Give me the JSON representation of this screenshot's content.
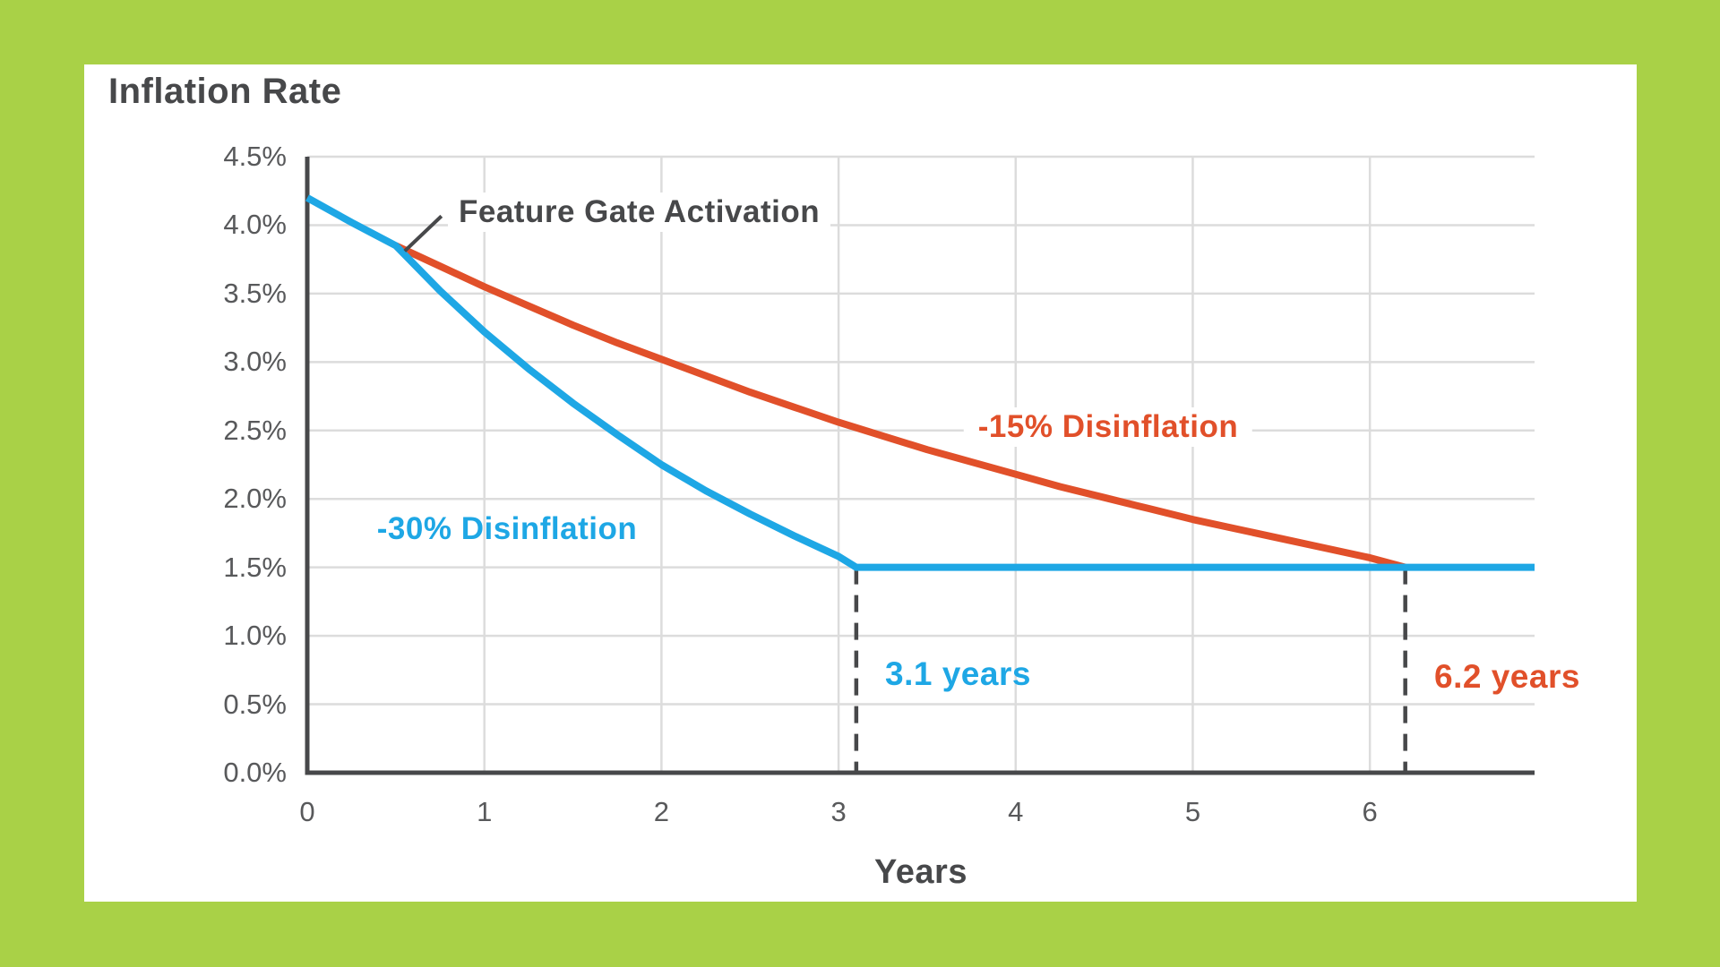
{
  "page": {
    "background_color": "#A9D147",
    "card_color": "#FFFFFF"
  },
  "chart": {
    "title": "Inflation Rate",
    "x_axis_label": "Years",
    "annotation_label": "Feature Gate Activation",
    "series_label_blue": "-30% Disinflation",
    "series_label_red": "-15% Disinflation",
    "marker_label_blue": "3.1 years",
    "marker_label_red": "6.2 years"
  },
  "chart_data": {
    "type": "line",
    "title": "Inflation Rate",
    "xlabel": "Years",
    "ylabel": "Inflation Rate",
    "xlim": [
      0,
      6.93
    ],
    "ylim": [
      0,
      4.5
    ],
    "grid": true,
    "x_ticks": [
      0,
      1,
      2,
      3,
      4,
      5,
      6
    ],
    "x_tick_labels": [
      "0",
      "1",
      "2",
      "3",
      "4",
      "5",
      "6"
    ],
    "y_ticks": [
      4.5,
      4.0,
      3.5,
      3.0,
      2.5,
      2.0,
      1.5,
      1.0,
      0.5,
      0.0
    ],
    "y_tick_labels": [
      "4.5%",
      "4.0%",
      "3.5%",
      "3.0%",
      "2.5%",
      "2.0%",
      "1.5%",
      "1.0%",
      "0.5%",
      "0.0%"
    ],
    "terminal_rate": 1.5,
    "colors": {
      "blue": "#1EA7E5",
      "red": "#E1502A",
      "axis": "#47484A",
      "grid": "#DCDCDC",
      "dashed": "#47484A"
    },
    "series": [
      {
        "name": "-15% Disinflation",
        "color": "#E1502A",
        "points": [
          [
            0.5,
            3.85
          ],
          [
            0.75,
            3.7
          ],
          [
            1.0,
            3.55
          ],
          [
            1.25,
            3.41
          ],
          [
            1.5,
            3.27
          ],
          [
            1.75,
            3.14
          ],
          [
            2.0,
            3.02
          ],
          [
            2.25,
            2.9
          ],
          [
            2.5,
            2.78
          ],
          [
            2.75,
            2.67
          ],
          [
            3.0,
            2.56
          ],
          [
            3.25,
            2.46
          ],
          [
            3.5,
            2.36
          ],
          [
            3.75,
            2.27
          ],
          [
            4.0,
            2.18
          ],
          [
            4.25,
            2.09
          ],
          [
            4.5,
            2.01
          ],
          [
            4.75,
            1.93
          ],
          [
            5.0,
            1.85
          ],
          [
            5.25,
            1.78
          ],
          [
            5.5,
            1.71
          ],
          [
            5.75,
            1.64
          ],
          [
            6.0,
            1.57
          ],
          [
            6.2,
            1.5
          ]
        ]
      },
      {
        "name": "-30% Disinflation",
        "color": "#1EA7E5",
        "points": [
          [
            0,
            4.2
          ],
          [
            0.25,
            4.02
          ],
          [
            0.5,
            3.85
          ],
          [
            0.75,
            3.52
          ],
          [
            1.0,
            3.22
          ],
          [
            1.25,
            2.95
          ],
          [
            1.5,
            2.7
          ],
          [
            1.75,
            2.47
          ],
          [
            2.0,
            2.25
          ],
          [
            2.25,
            2.06
          ],
          [
            2.5,
            1.89
          ],
          [
            2.75,
            1.73
          ],
          [
            3.0,
            1.58
          ],
          [
            3.1,
            1.5
          ],
          [
            6.93,
            1.5
          ]
        ]
      }
    ],
    "annotations": [
      {
        "type": "point-callout",
        "text": "Feature Gate Activation",
        "x": 0.53,
        "y": 3.85
      },
      {
        "type": "vline",
        "text": "3.1 years",
        "x": 3.1,
        "color": "#1EA7E5"
      },
      {
        "type": "vline",
        "text": "6.2 years",
        "x": 6.2,
        "color": "#E1502A"
      }
    ]
  }
}
